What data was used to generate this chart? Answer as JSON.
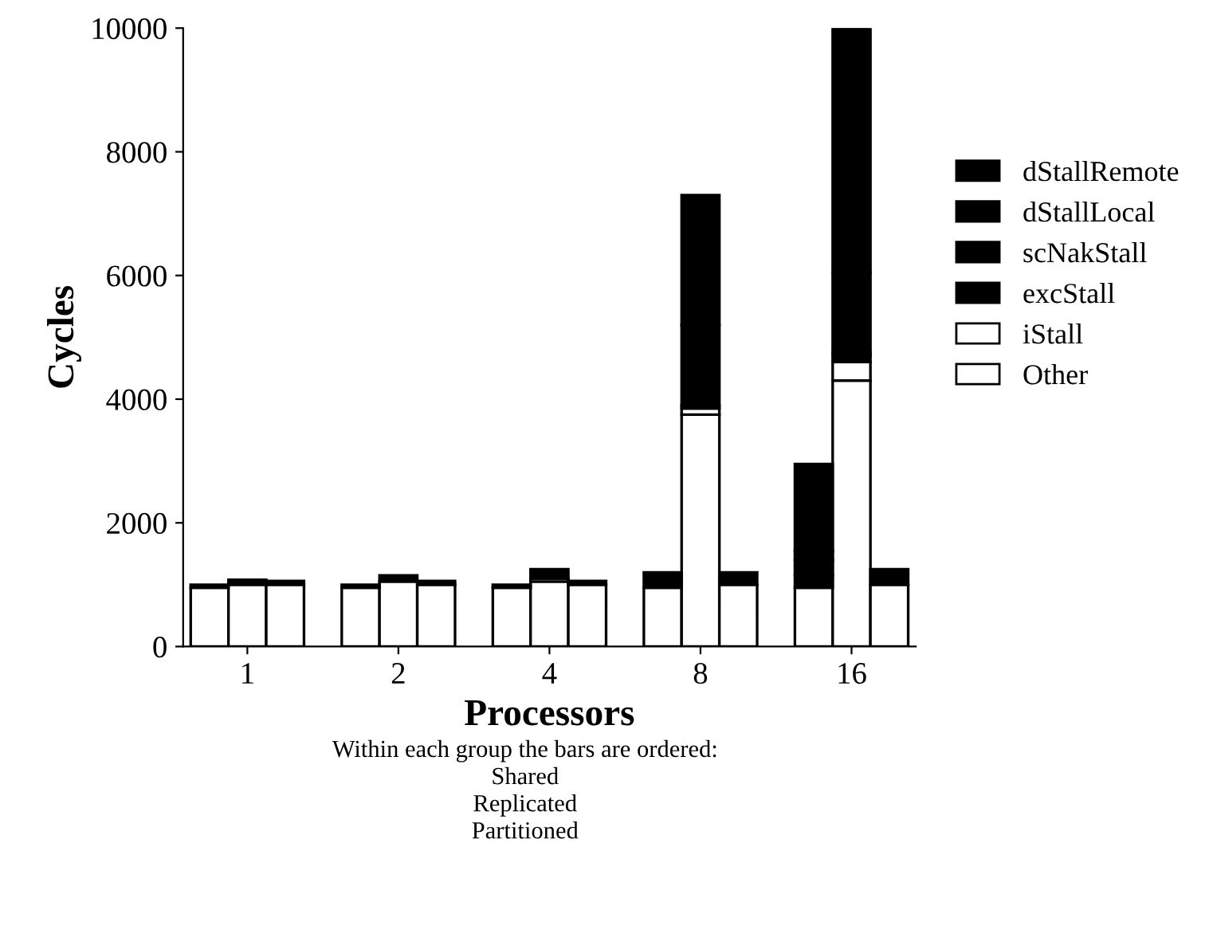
{
  "chart_data": {
    "type": "bar",
    "stacked": true,
    "xlabel": "Processors",
    "ylabel": "Cycles",
    "categories": [
      null,
      "1",
      null,
      null,
      null,
      "2",
      null,
      null,
      null,
      "4",
      null,
      null,
      null,
      "8",
      null,
      null,
      null,
      "16",
      null
    ],
    "series": [
      {
        "name": "Other",
        "color": "#ffffff",
        "values": [
          950,
          1000,
          1000,
          null,
          950,
          1050,
          1000,
          null,
          950,
          1050,
          1000,
          null,
          950,
          3750,
          1000,
          null,
          950,
          4300,
          1000
        ]
      },
      {
        "name": "iStall",
        "color": "#ffffff",
        "values": [
          0,
          0,
          0,
          null,
          0,
          0,
          0,
          null,
          0,
          50,
          0,
          null,
          0,
          100,
          0,
          null,
          0,
          300,
          0
        ]
      },
      {
        "name": "excStall",
        "color": "#000000",
        "values": [
          50,
          80,
          60,
          null,
          50,
          100,
          60,
          null,
          50,
          150,
          60,
          null,
          250,
          50,
          200,
          null,
          200,
          100,
          250
        ]
      },
      {
        "name": "scNakStall",
        "color": "#000000",
        "values": [
          0,
          0,
          0,
          null,
          0,
          0,
          0,
          null,
          0,
          0,
          0,
          null,
          0,
          null,
          0,
          null,
          250,
          50,
          0
        ]
      },
      {
        "name": "dStallLocal",
        "color": "#000000",
        "values": [
          0,
          0,
          0,
          null,
          0,
          0,
          0,
          null,
          0,
          0,
          0,
          null,
          0,
          1300,
          0,
          null,
          150,
          1300,
          0
        ]
      },
      {
        "name": "dStallRemote",
        "color": "#000000",
        "values": [
          0,
          0,
          0,
          null,
          0,
          0,
          0,
          null,
          0,
          0,
          0,
          null,
          0,
          2100,
          0,
          null,
          1400,
          3950,
          0
        ]
      }
    ],
    "ylim": [
      0,
      10000
    ],
    "yticks": [
      0,
      2000,
      4000,
      6000,
      8000,
      10000
    ],
    "legend": "right",
    "annotations": [
      "Within each group the bars are ordered:\nShared\nReplicated\nPartitioned"
    ]
  }
}
